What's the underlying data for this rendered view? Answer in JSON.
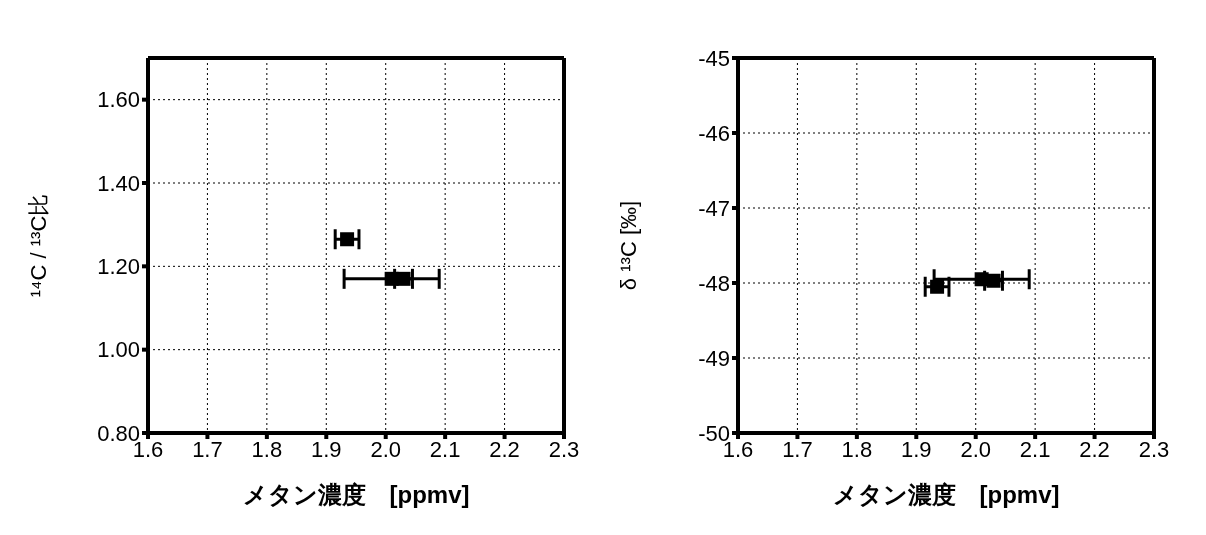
{
  "chart_data": [
    {
      "type": "scatter",
      "xlabel": "メタン濃度　[ppmv]",
      "ylabel": "¹⁴C / ¹³C比",
      "xlim": [
        1.6,
        2.3
      ],
      "xticks": [
        1.6,
        1.7,
        1.8,
        1.9,
        {
          "value": 2,
          "label": "2.0"
        },
        2.1,
        2.2,
        2.3
      ],
      "ylim": [
        0.8,
        1.7
      ],
      "yticks": [
        {
          "value": 0.8,
          "label": "0.80"
        },
        {
          "value": 1.0,
          "label": "1.00"
        },
        {
          "value": 1.2,
          "label": "1.20"
        },
        {
          "value": 1.4,
          "label": "1.40"
        },
        {
          "value": 1.6,
          "label": "1.60"
        }
      ],
      "grid": true,
      "marker": "square",
      "series": [
        {
          "color": "#000000",
          "x": [
            1.935,
            2.01,
            2.03
          ],
          "values": [
            1.265,
            1.17,
            1.17
          ],
          "xerrors": [
            0.02,
            0.08,
            0.015
          ]
        }
      ]
    },
    {
      "type": "scatter",
      "xlabel": "メタン濃度　[ppmv]",
      "ylabel": "δ ¹³C [‰]",
      "xlim": [
        1.6,
        2.3
      ],
      "xticks": [
        1.6,
        1.7,
        1.8,
        1.9,
        {
          "value": 2,
          "label": "2.0"
        },
        2.1,
        2.2,
        2.3
      ],
      "ylim": [
        -50,
        -45
      ],
      "yticks": [
        -50,
        -49,
        -48,
        -47,
        -46,
        -45
      ],
      "grid": true,
      "marker": "square",
      "series": [
        {
          "color": "#000000",
          "x": [
            1.935,
            2.01,
            2.03
          ],
          "values": [
            -48.05,
            -47.95,
            -47.97
          ],
          "xerrors": [
            0.02,
            0.08,
            0.015
          ]
        }
      ]
    }
  ]
}
